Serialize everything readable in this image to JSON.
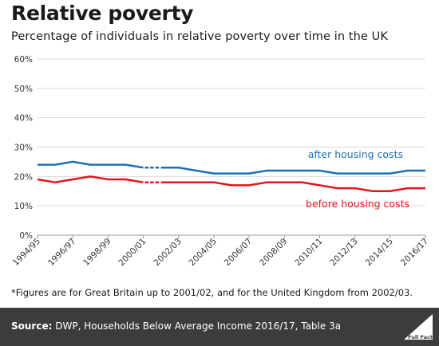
{
  "title": "Relative poverty",
  "subtitle": "Percentage of individuals in relative poverty over time in the UK",
  "footnote": "*Figures are for Great Britain up to 2001/02, and for the United Kingdom from 2002/03.",
  "source_label": "Source:",
  "source_text": "DWP, Households Below Average Income 2016/17, Table 3a",
  "logo_text": "Full Fact",
  "colors": {
    "after_housing_costs": "#1f6fb6",
    "before_housing_costs": "#e5141b",
    "gridline": "#d9d9d9",
    "footer_bg": "#3c3c3c"
  },
  "chart_data": {
    "type": "line",
    "categories": [
      "1994/95",
      "1995/96",
      "1996/97",
      "1997/98",
      "1998/99",
      "1999/00",
      "2000/01",
      "2001/02",
      "2002/03",
      "2003/04",
      "2004/05",
      "2005/06",
      "2006/07",
      "2007/08",
      "2008/09",
      "2009/10",
      "2010/11",
      "2011/12",
      "2012/13",
      "2013/14",
      "2014/15",
      "2015/16",
      "2016/17"
    ],
    "tick_labels": [
      "1994/95",
      "1996/97",
      "1998/99",
      "2000/01",
      "2002/03",
      "2004/05",
      "2006/07",
      "2008/09",
      "2010/11",
      "2012/13",
      "2014/15",
      "2016/17"
    ],
    "series": [
      {
        "name": "after housing costs",
        "key": "after_housing_costs",
        "values": [
          24,
          24,
          25,
          24,
          24,
          24,
          23,
          23,
          23,
          22,
          21,
          21,
          21,
          22,
          22,
          22,
          22,
          21,
          21,
          21,
          21,
          22,
          22
        ]
      },
      {
        "name": "before housing costs",
        "key": "before_housing_costs",
        "values": [
          19,
          18,
          19,
          20,
          19,
          19,
          18,
          18,
          18,
          18,
          18,
          17,
          17,
          18,
          18,
          18,
          17,
          16,
          16,
          15,
          15,
          16,
          16
        ]
      }
    ],
    "dotted_break_between": [
      "2000/01",
      "2001/02"
    ],
    "ylim": [
      0,
      60
    ],
    "yticks": [
      0,
      10,
      20,
      30,
      40,
      50,
      60
    ],
    "ytick_format": "{v}%",
    "grid": true,
    "legend": "inline labels right"
  }
}
